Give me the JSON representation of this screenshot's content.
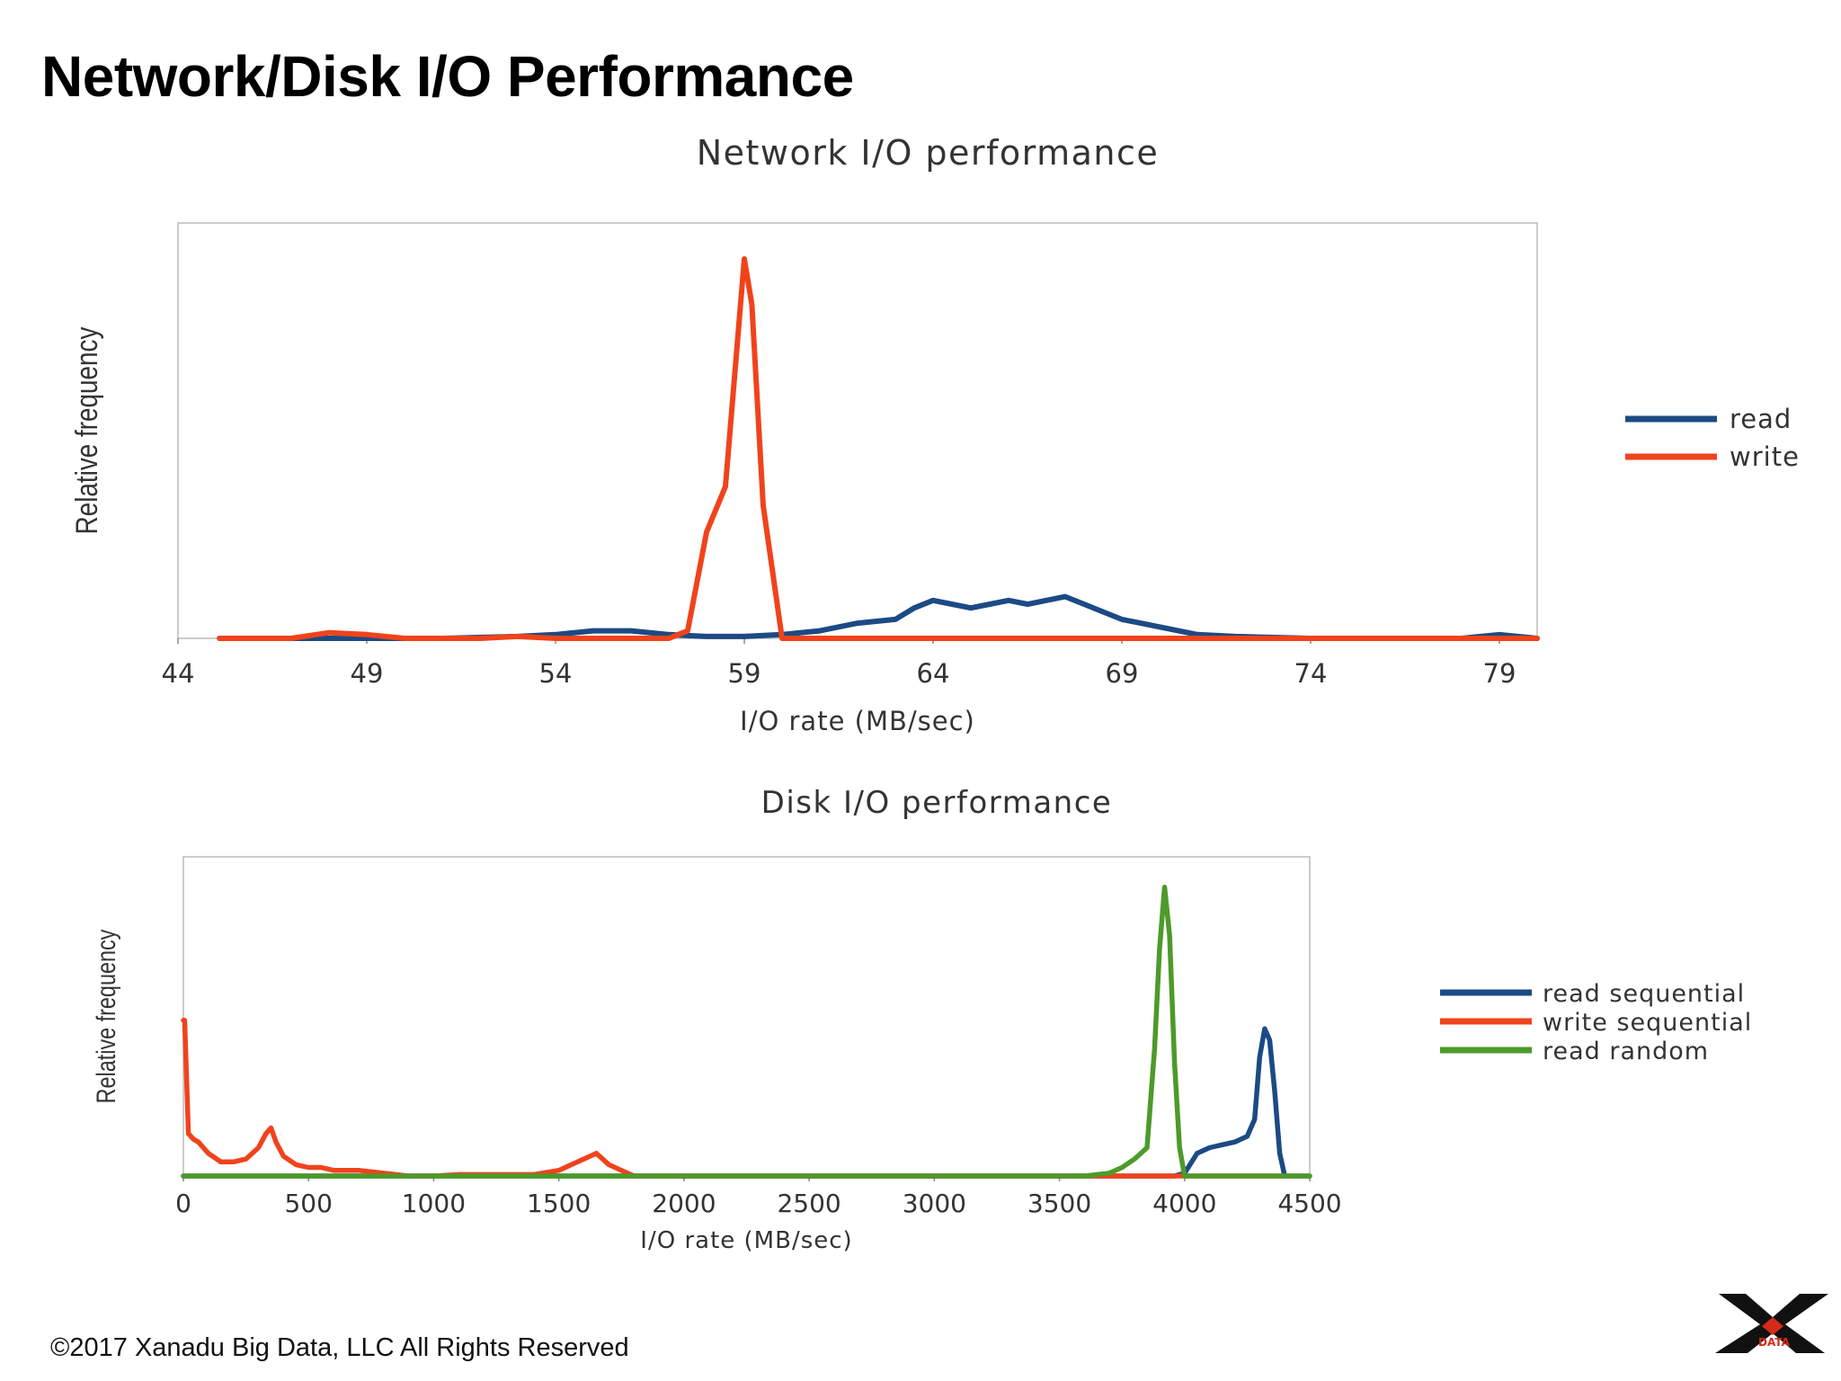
{
  "slide": {
    "title": "Network/Disk I/O Performance",
    "footer": "©2017 Xanadu Big Data, LLC All Rights Reserved",
    "logo_letters": "X B G DATA"
  },
  "colors": {
    "read": "#1c4a84",
    "write": "#f0431c",
    "random": "#4d9a2a",
    "frame": "#bbbbbb"
  },
  "chart_data": [
    {
      "type": "line",
      "title": "Network I/O performance",
      "xlabel": "I/O rate (MB/sec)",
      "ylabel": "Relative frequency",
      "xlim": [
        44,
        80
      ],
      "ylim": [
        0,
        100
      ],
      "xticks": [
        44,
        49,
        54,
        59,
        64,
        69,
        74,
        79
      ],
      "legend_position": "right",
      "grid": false,
      "series": [
        {
          "name": "read",
          "color": "#1c4a84",
          "x": [
            45.1,
            47,
            49,
            51,
            53,
            54,
            55,
            56,
            57,
            58,
            59,
            60,
            61,
            62,
            63,
            63.5,
            64,
            64.5,
            65,
            65.5,
            66,
            66.5,
            67,
            67.5,
            68,
            68.5,
            69,
            69.5,
            70,
            70.5,
            71,
            72,
            74,
            76,
            78,
            79,
            80
          ],
          "y": [
            0,
            0,
            0,
            0,
            0.5,
            1,
            2,
            2,
            1,
            0.5,
            0.5,
            1,
            2,
            4,
            5,
            8,
            10,
            9,
            8,
            9,
            10,
            9,
            10,
            11,
            9,
            7,
            5,
            4,
            3,
            2,
            1,
            0.5,
            0,
            0,
            0,
            1,
            0
          ]
        },
        {
          "name": "write",
          "color": "#f0431c",
          "x": [
            45.1,
            47,
            48,
            49,
            50,
            52,
            53,
            54,
            55,
            56,
            57,
            57.5,
            58,
            58.5,
            59,
            59.2,
            59.5,
            60,
            62,
            70,
            80
          ],
          "y": [
            0,
            0,
            1.5,
            1,
            0,
            0,
            0.5,
            0,
            0,
            0,
            0,
            2,
            28,
            40,
            100,
            88,
            35,
            0,
            0,
            0,
            0
          ]
        }
      ]
    },
    {
      "type": "line",
      "title": "Disk I/O performance",
      "xlabel": "I/O rate (MB/sec)",
      "ylabel": "Relative frequency",
      "xlim": [
        0,
        4500
      ],
      "ylim": [
        0,
        100
      ],
      "xticks": [
        0,
        500,
        1000,
        1500,
        2000,
        2500,
        3000,
        3500,
        4000,
        4500
      ],
      "legend_position": "right",
      "grid": false,
      "series": [
        {
          "name": "read sequential",
          "color": "#1c4a84",
          "x": [
            0,
            3800,
            3900,
            3960,
            4000,
            4050,
            4100,
            4150,
            4200,
            4250,
            4280,
            4300,
            4320,
            4340,
            4360,
            4380,
            4400,
            4500
          ],
          "y": [
            0,
            0,
            0,
            0,
            1,
            8,
            10,
            11,
            12,
            14,
            20,
            42,
            52,
            48,
            30,
            8,
            0,
            0
          ]
        },
        {
          "name": "write sequential",
          "color": "#f0431c",
          "x": [
            0,
            5,
            20,
            40,
            60,
            100,
            150,
            200,
            250,
            300,
            330,
            350,
            370,
            400,
            450,
            500,
            550,
            600,
            700,
            800,
            900,
            1000,
            1100,
            1200,
            1300,
            1400,
            1500,
            1550,
            1600,
            1650,
            1700,
            1750,
            1800,
            2000,
            3000,
            4000,
            4400
          ],
          "y": [
            55,
            55,
            15,
            13,
            12,
            8,
            5,
            5,
            6,
            10,
            15,
            17,
            12,
            7,
            4,
            3,
            3,
            2,
            2,
            1,
            0,
            0,
            0.5,
            0.5,
            0.5,
            0.5,
            2,
            4,
            6,
            8,
            4,
            2,
            0,
            0,
            0,
            0,
            0
          ]
        },
        {
          "name": "read random",
          "color": "#4d9a2a",
          "x": [
            0,
            3600,
            3700,
            3750,
            3800,
            3850,
            3880,
            3900,
            3920,
            3940,
            3960,
            3980,
            4000,
            4020,
            4500
          ],
          "y": [
            0,
            0,
            1,
            3,
            6,
            10,
            45,
            80,
            102,
            85,
            40,
            10,
            0,
            0,
            0
          ]
        }
      ]
    }
  ]
}
